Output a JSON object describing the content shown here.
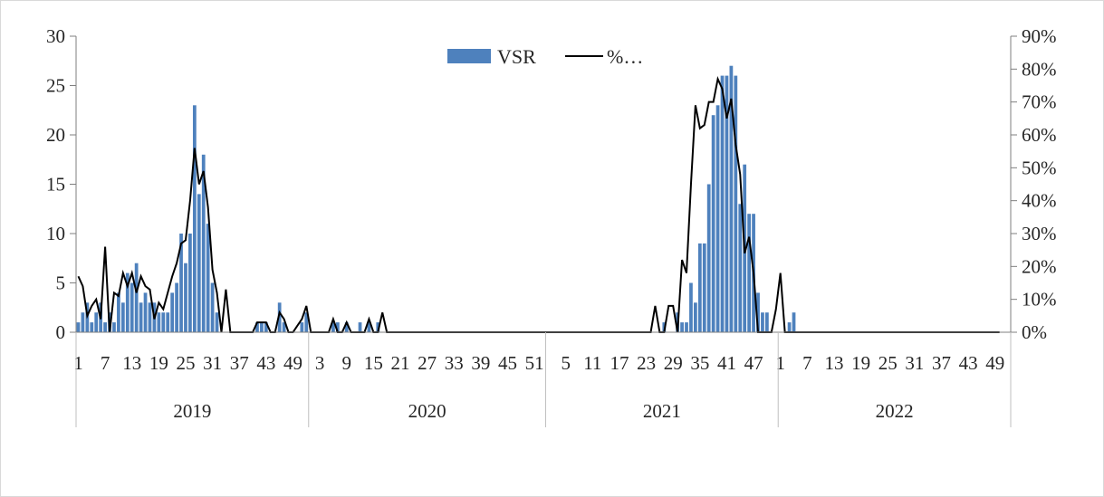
{
  "chart_data": {
    "type": "bar+line",
    "title": "",
    "xlabel": "",
    "ylabel": "",
    "legend": {
      "position": "top-center",
      "entries": [
        "VSR",
        "%…"
      ]
    },
    "y_left": {
      "min": 0,
      "max": 30,
      "ticks": [
        "0",
        "5",
        "10",
        "15",
        "20",
        "25",
        "30"
      ]
    },
    "y_right": {
      "min": 0,
      "max": 0.9,
      "ticks": [
        "0%",
        "10%",
        "20%",
        "30%",
        "40%",
        "50%",
        "60%",
        "70%",
        "80%",
        "90%"
      ]
    },
    "years": [
      {
        "label": "2019",
        "weeks": 52,
        "tick_labels": [
          "1",
          "7",
          "13",
          "19",
          "25",
          "31",
          "37",
          "43",
          "49"
        ]
      },
      {
        "label": "2020",
        "weeks": 53,
        "tick_labels": [
          "3",
          "9",
          "15",
          "21",
          "27",
          "33",
          "39",
          "45",
          "51"
        ]
      },
      {
        "label": "2021",
        "weeks": 52,
        "tick_labels": [
          "5",
          "11",
          "17",
          "23",
          "29",
          "35",
          "41",
          "47"
        ]
      },
      {
        "label": "2022",
        "weeks": 52,
        "tick_labels": [
          "1",
          "7",
          "13",
          "19",
          "25",
          "31",
          "37",
          "43",
          "49"
        ]
      }
    ],
    "series": [
      {
        "name": "VSR",
        "kind": "bar",
        "color": "#4e81bd",
        "values": [
          1,
          2,
          3,
          1,
          2,
          3,
          1,
          2,
          1,
          4,
          3,
          6,
          5,
          7,
          3,
          4,
          3,
          3,
          2,
          2,
          2,
          4,
          5,
          10,
          7,
          10,
          23,
          14,
          18,
          11,
          5,
          2,
          0,
          0,
          0,
          0,
          0,
          0,
          0,
          0,
          1,
          1,
          1,
          0,
          0,
          3,
          1,
          0,
          0,
          0,
          1,
          2,
          0,
          0,
          0,
          0,
          0,
          1,
          1,
          0,
          1,
          0,
          0,
          1,
          0,
          1,
          0,
          1,
          0,
          0,
          0,
          0,
          0,
          0,
          0,
          0,
          0,
          0,
          0,
          0,
          0,
          0,
          0,
          0,
          0,
          0,
          0,
          0,
          0,
          0,
          0,
          0,
          0,
          0,
          0,
          0,
          0,
          0,
          0,
          0,
          0,
          0,
          0,
          0,
          0,
          0,
          0,
          0,
          0,
          0,
          0,
          0,
          0,
          0,
          0,
          0,
          0,
          0,
          0,
          0,
          0,
          0,
          0,
          0,
          0,
          0,
          0,
          0,
          0,
          0,
          0,
          1,
          0,
          0,
          2,
          1,
          1,
          5,
          3,
          9,
          9,
          15,
          22,
          23,
          26,
          26,
          27,
          26,
          13,
          17,
          12,
          12,
          4,
          2,
          2,
          0,
          0,
          0,
          0,
          1,
          2,
          0,
          0,
          0,
          0,
          0,
          0,
          0,
          0,
          0,
          0,
          0,
          0,
          0,
          0,
          0,
          0,
          0,
          0,
          0,
          0,
          0,
          0,
          0,
          0,
          0,
          0,
          0,
          0,
          0,
          0,
          0,
          0,
          0,
          0,
          0,
          0,
          0,
          0,
          0,
          0,
          0,
          0,
          0,
          0,
          0,
          0,
          0,
          0
        ]
      },
      {
        "name": "%…",
        "kind": "line",
        "axis": "right",
        "color": "#000000",
        "values": [
          0.17,
          0.14,
          0.05,
          0.08,
          0.1,
          0.04,
          0.26,
          0.0,
          0.12,
          0.11,
          0.18,
          0.14,
          0.18,
          0.12,
          0.17,
          0.14,
          0.13,
          0.04,
          0.09,
          0.07,
          0.12,
          0.17,
          0.21,
          0.27,
          0.28,
          0.4,
          0.56,
          0.45,
          0.49,
          0.38,
          0.19,
          0.12,
          0.0,
          0.13,
          0.0,
          0.0,
          0.0,
          0.0,
          0.0,
          0.0,
          0.03,
          0.03,
          0.03,
          0.0,
          0.0,
          0.06,
          0.04,
          0.0,
          0.0,
          0.02,
          0.04,
          0.08,
          0.0,
          0.0,
          0.0,
          0.0,
          0.0,
          0.04,
          0.0,
          0.0,
          0.03,
          0.0,
          0.0,
          0.0,
          0.0,
          0.04,
          0.0,
          0.0,
          0.06,
          0.0,
          0.0,
          0.0,
          0.0,
          0.0,
          0.0,
          0.0,
          0.0,
          0.0,
          0.0,
          0.0,
          0.0,
          0.0,
          0.0,
          0.0,
          0.0,
          0.0,
          0.0,
          0.0,
          0.0,
          0.0,
          0.0,
          0.0,
          0.0,
          0.0,
          0.0,
          0.0,
          0.0,
          0.0,
          0.0,
          0.0,
          0.0,
          0.0,
          0.0,
          0.0,
          0.0,
          0.0,
          0.0,
          0.0,
          0.0,
          0.0,
          0.0,
          0.0,
          0.0,
          0.0,
          0.0,
          0.0,
          0.0,
          0.0,
          0.0,
          0.0,
          0.0,
          0.0,
          0.0,
          0.0,
          0.0,
          0.0,
          0.0,
          0.0,
          0.0,
          0.08,
          0.0,
          0.0,
          0.08,
          0.08,
          0.0,
          0.22,
          0.18,
          0.45,
          0.69,
          0.62,
          0.63,
          0.7,
          0.7,
          0.77,
          0.74,
          0.65,
          0.71,
          0.57,
          0.48,
          0.24,
          0.29,
          0.18,
          0.0,
          0.0,
          0.0,
          0.0,
          0.07,
          0.18,
          0.0,
          0.0,
          0.0,
          0.0,
          0.0,
          0.0,
          0.0,
          0.0,
          0.0,
          0.0,
          0.0,
          0.0,
          0.0,
          0.0,
          0.0,
          0.0,
          0.0,
          0.0,
          0.0,
          0.0,
          0.0,
          0.0,
          0.0,
          0.0,
          0.0,
          0.0,
          0.0,
          0.0,
          0.0,
          0.0,
          0.0,
          0.0,
          0.0,
          0.0,
          0.0,
          0.0,
          0.0,
          0.0,
          0.0,
          0.0,
          0.0,
          0.0,
          0.0,
          0.0,
          0.0,
          0.0,
          0.0,
          0.0,
          0.0
        ]
      }
    ],
    "grid": false
  }
}
